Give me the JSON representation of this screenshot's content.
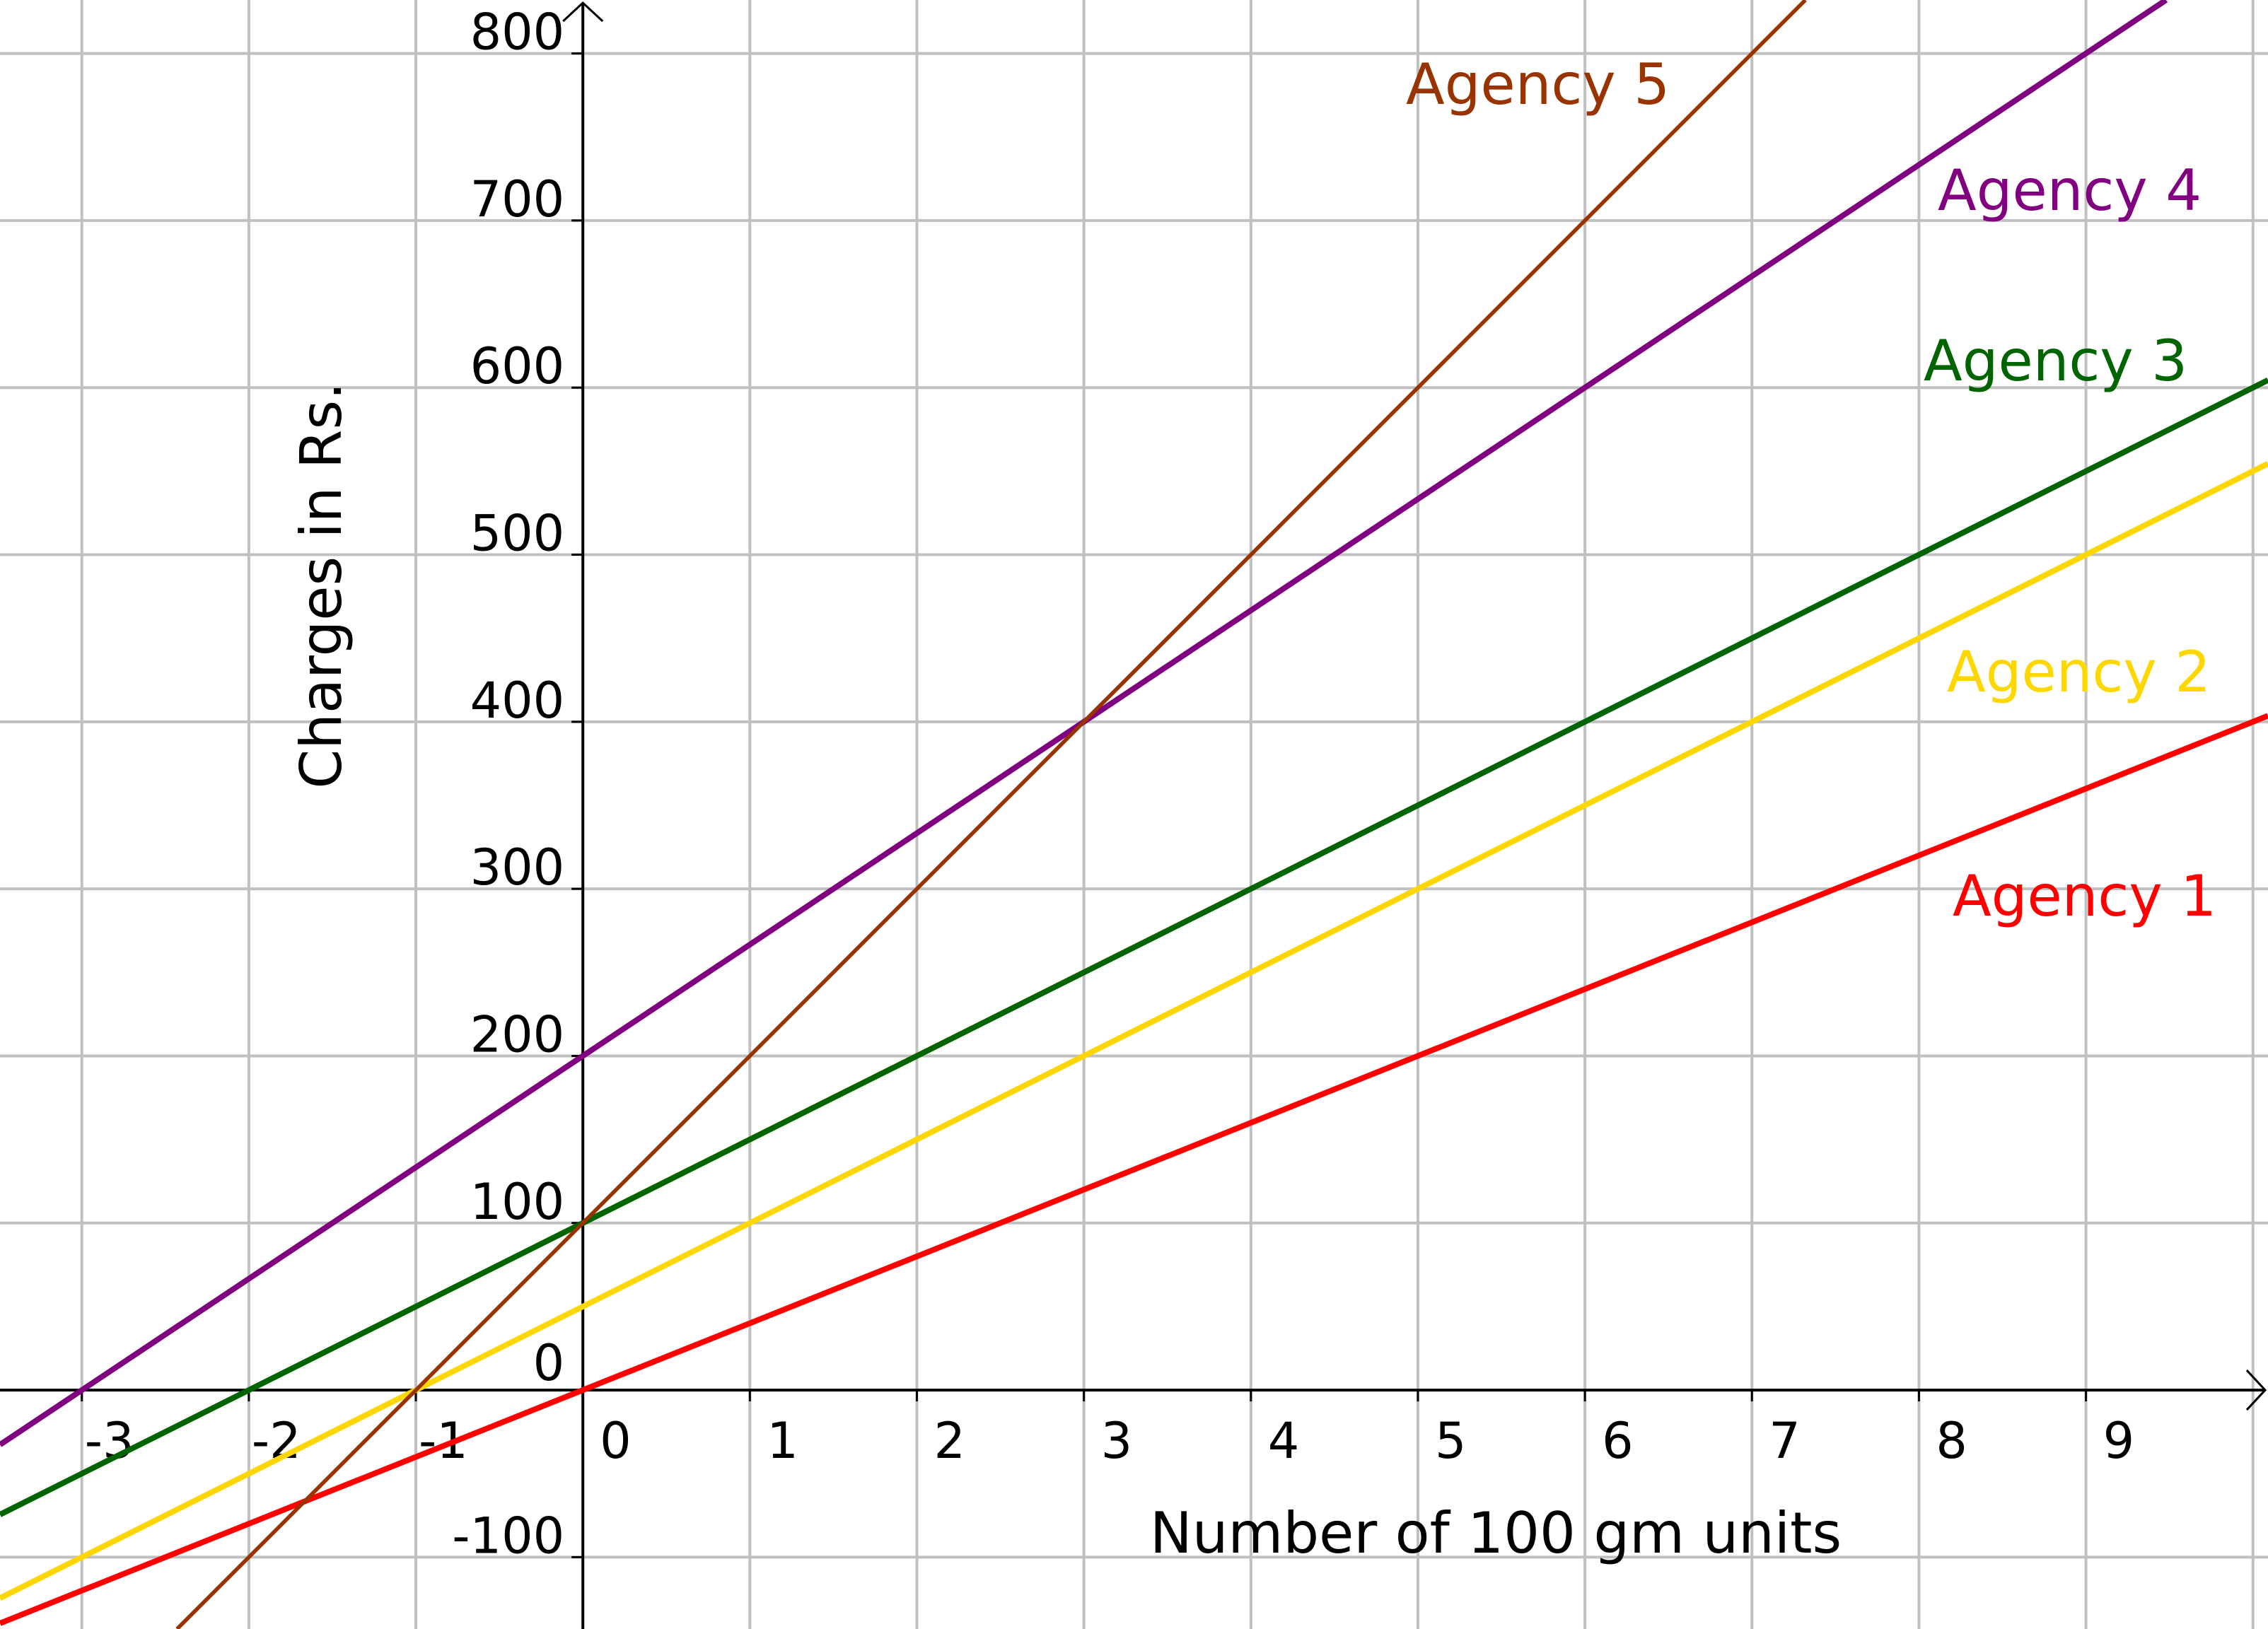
{
  "chart_data": {
    "type": "line",
    "title": "",
    "xlabel": "Number of 100 gm units",
    "ylabel": "Charges in Rs.",
    "xlim": [
      -3.49,
      10.09
    ],
    "ylim": [
      -143,
      832
    ],
    "grid": true,
    "x_ticks": [
      -3,
      -2,
      -1,
      0,
      1,
      2,
      3,
      4,
      5,
      6,
      7,
      8,
      9
    ],
    "x_tick_labels": [
      "-3",
      "-2",
      "-1",
      "0",
      "1",
      "2",
      "3",
      "4",
      "5",
      "6",
      "7",
      "8",
      "9"
    ],
    "y_ticks": [
      -100,
      0,
      100,
      200,
      300,
      400,
      500,
      600,
      700,
      800
    ],
    "y_tick_labels": [
      "-100",
      "0",
      "100",
      "200",
      "300",
      "400",
      "500",
      "600",
      "700",
      "800"
    ],
    "series": [
      {
        "name": "Agency 1",
        "color": "#FF0000",
        "intercept": 0,
        "slope": 40,
        "x": [
          -3.49,
          10.09
        ],
        "y": [
          -139.6,
          403.6
        ]
      },
      {
        "name": "Agency 2",
        "color": "#FFD700",
        "intercept": 50,
        "slope": 50,
        "x": [
          -3.49,
          10.09
        ],
        "y": [
          -124.5,
          554.5
        ]
      },
      {
        "name": "Agency 3",
        "color": "#006400",
        "intercept": 100,
        "slope": 50,
        "x": [
          -3.49,
          10.09
        ],
        "y": [
          -74.5,
          604.5
        ]
      },
      {
        "name": "Agency 4",
        "color": "#800080",
        "intercept": 200,
        "slope": 66.67,
        "x": [
          -3.49,
          10.09
        ],
        "y": [
          -32.7,
          872.7
        ]
      },
      {
        "name": "Agency 5",
        "color": "#993300",
        "intercept": 100,
        "slope": 100,
        "x": [
          -3.49,
          10.09
        ],
        "y": [
          -249,
          1109
        ]
      }
    ]
  }
}
